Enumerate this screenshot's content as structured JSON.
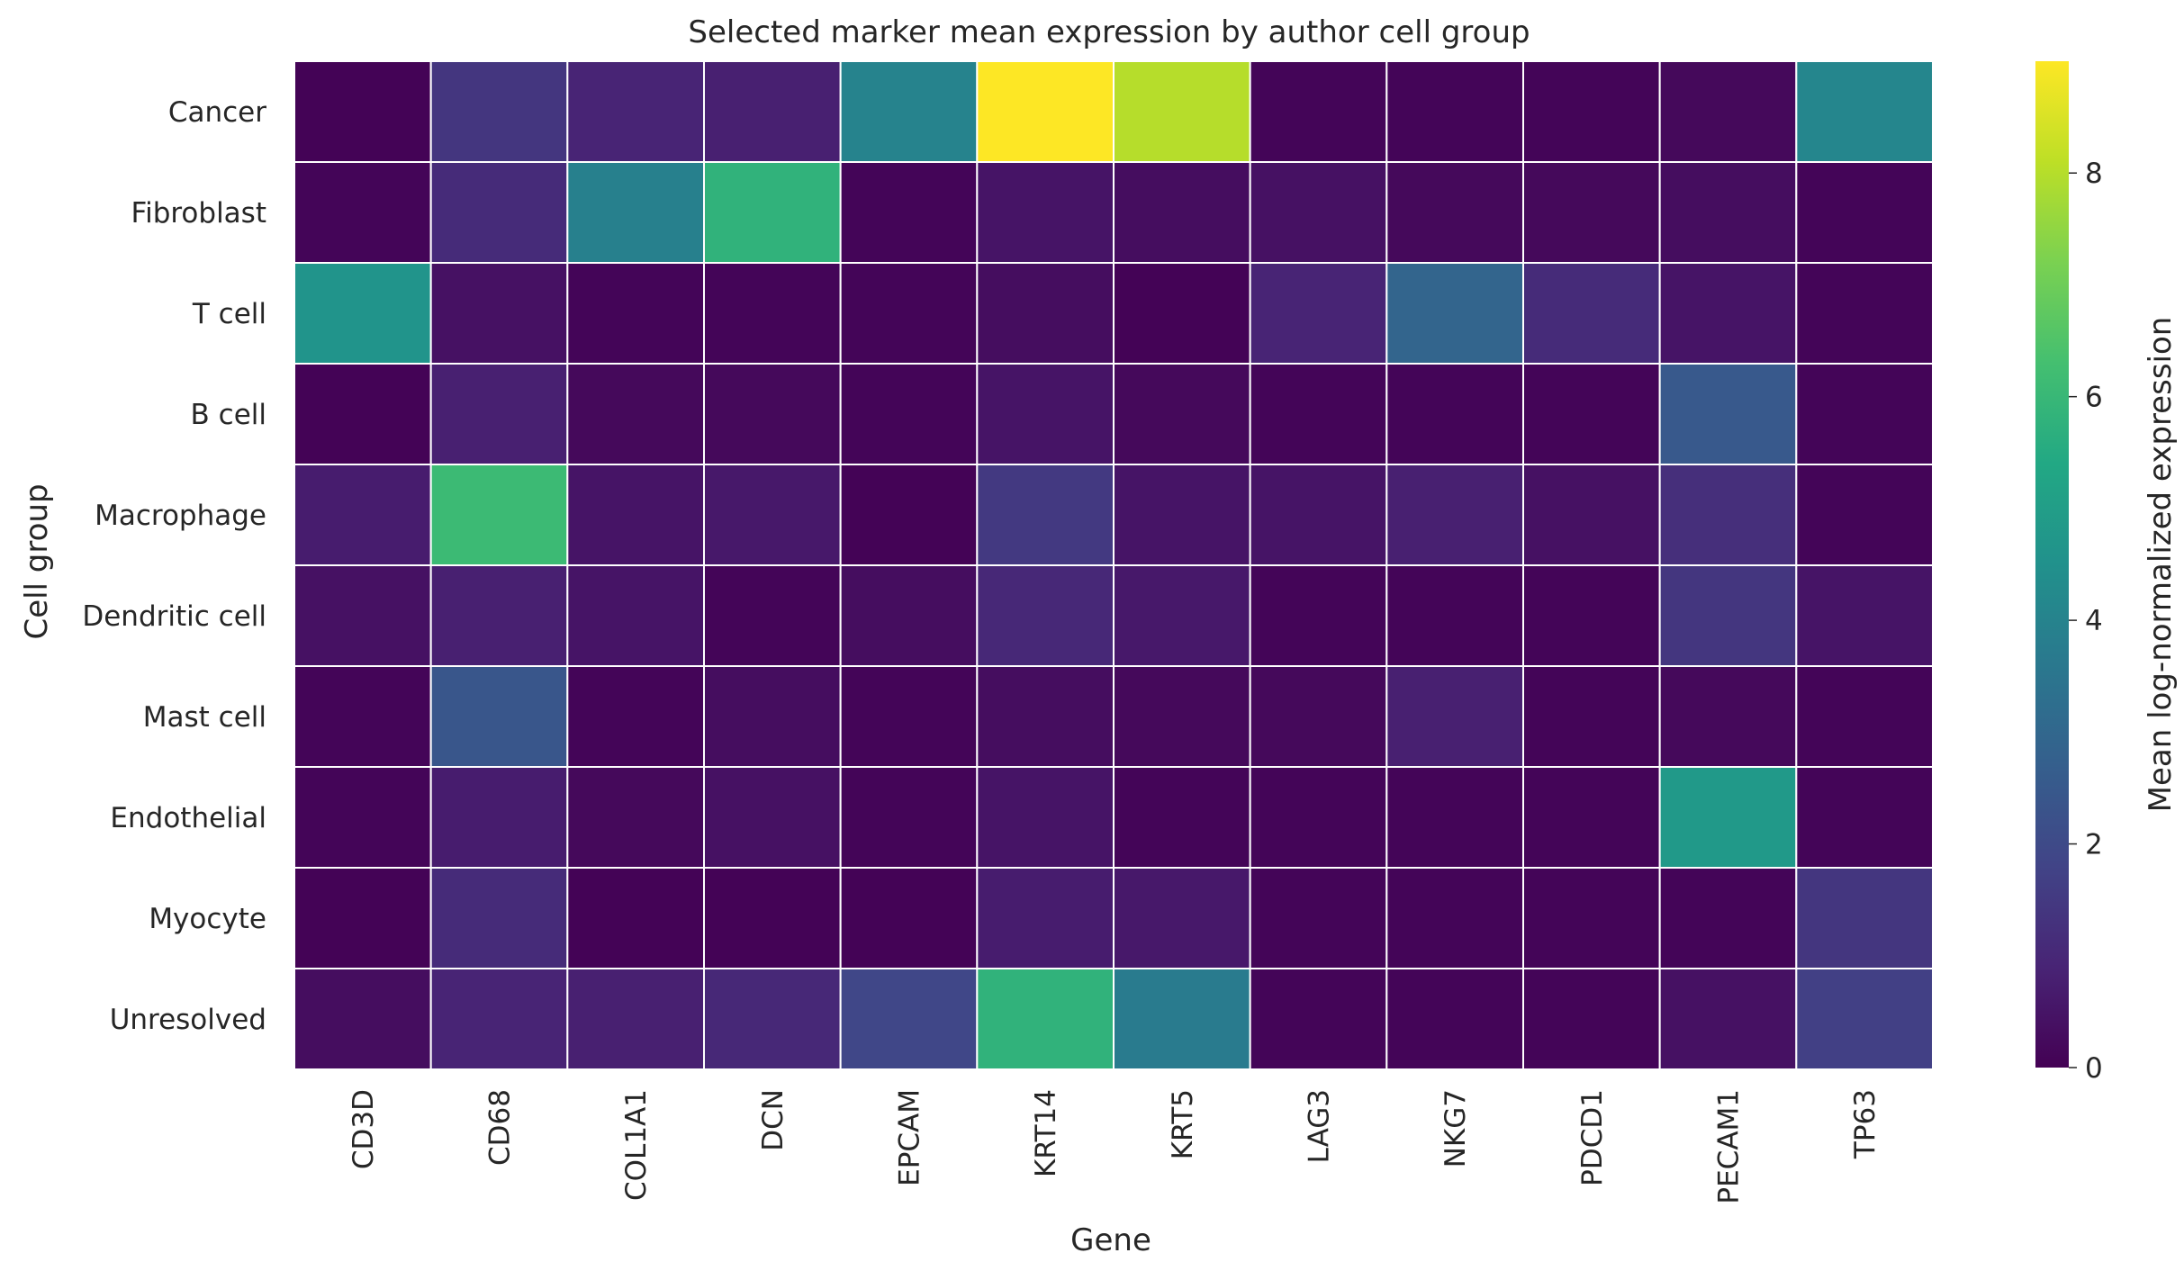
{
  "chart_data": {
    "type": "heatmap",
    "title": "Selected marker mean expression by author cell group",
    "xlabel": "Gene",
    "ylabel": "Cell group",
    "colorbar_label": "Mean log-normalized expression",
    "colormap": "viridis",
    "vlim": [
      0,
      9
    ],
    "colorbar_ticks": [
      0,
      2,
      4,
      6,
      8
    ],
    "x_categories": [
      "CD3D",
      "CD68",
      "COL1A1",
      "DCN",
      "EPCAM",
      "KRT14",
      "KRT5",
      "LAG3",
      "NKG7",
      "PDCD1",
      "PECAM1",
      "TP63"
    ],
    "y_categories": [
      "Cancer",
      "Fibroblast",
      "T cell",
      "B cell",
      "Macrophage",
      "Dendritic cell",
      "Mast cell",
      "Endothelial",
      "Myocyte",
      "Unresolved"
    ],
    "values": [
      [
        0.05,
        1.4,
        0.9,
        0.8,
        4.0,
        9.0,
        8.0,
        0.1,
        0.1,
        0.1,
        0.2,
        4.1
      ],
      [
        0.1,
        1.1,
        3.9,
        5.8,
        0.1,
        0.5,
        0.3,
        0.4,
        0.2,
        0.2,
        0.3,
        0.1
      ],
      [
        4.6,
        0.4,
        0.1,
        0.1,
        0.1,
        0.3,
        0.05,
        0.9,
        2.9,
        1.1,
        0.5,
        0.1
      ],
      [
        0.05,
        0.8,
        0.2,
        0.2,
        0.1,
        0.5,
        0.2,
        0.1,
        0.1,
        0.1,
        2.5,
        0.1
      ],
      [
        0.7,
        6.1,
        0.5,
        0.6,
        0.05,
        1.5,
        0.5,
        0.5,
        0.8,
        0.4,
        1.2,
        0.1
      ],
      [
        0.4,
        0.8,
        0.5,
        0.1,
        0.3,
        1.0,
        0.6,
        0.1,
        0.1,
        0.1,
        1.4,
        0.5
      ],
      [
        0.1,
        2.4,
        0.1,
        0.3,
        0.1,
        0.3,
        0.2,
        0.2,
        0.8,
        0.1,
        0.2,
        0.1
      ],
      [
        0.1,
        0.7,
        0.2,
        0.4,
        0.1,
        0.5,
        0.1,
        0.1,
        0.1,
        0.1,
        4.8,
        0.1
      ],
      [
        0.05,
        1.1,
        0.05,
        0.05,
        0.05,
        0.7,
        0.6,
        0.1,
        0.1,
        0.1,
        0.1,
        1.4
      ],
      [
        0.3,
        0.9,
        0.8,
        1.0,
        1.9,
        5.8,
        3.7,
        0.1,
        0.1,
        0.1,
        0.4,
        1.7
      ]
    ]
  }
}
